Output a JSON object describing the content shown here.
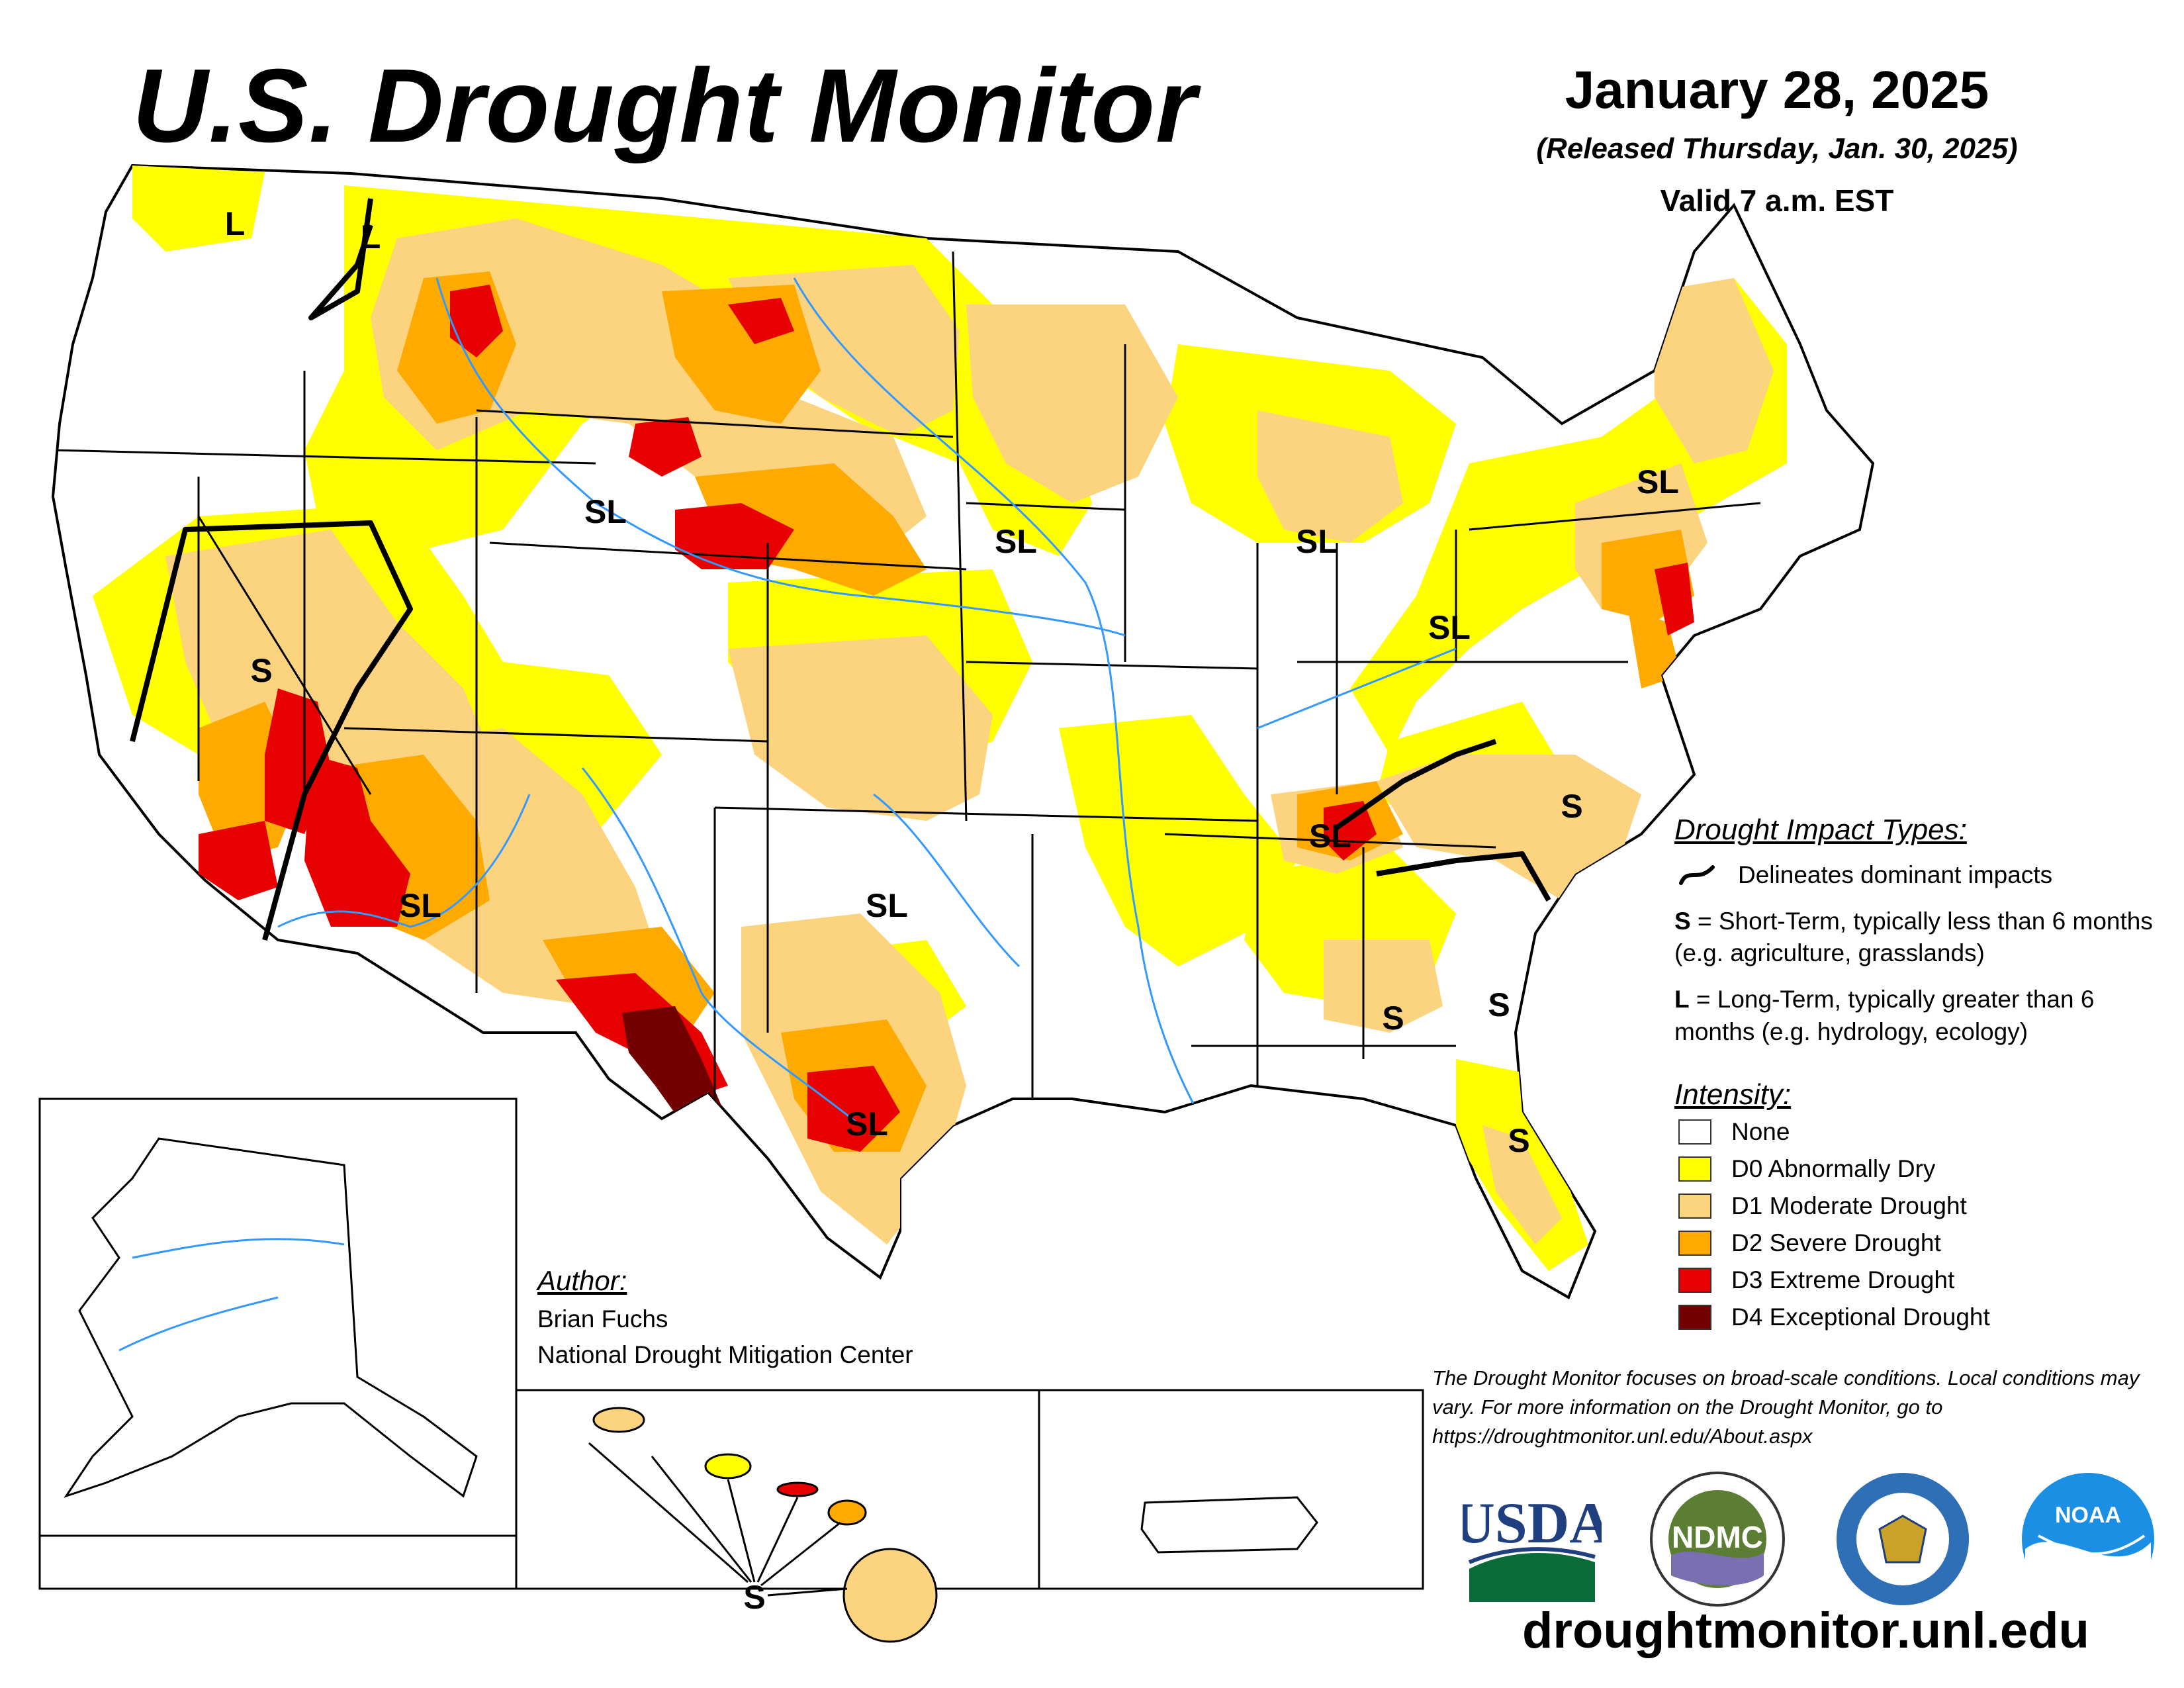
{
  "header": {
    "title": "U.S. Drought Monitor",
    "date": "January 28, 2025",
    "released": "(Released Thursday, Jan. 30, 2025)",
    "valid": "Valid 7 a.m. EST"
  },
  "legend": {
    "impact_heading": "Drought Impact Types:",
    "delineates": "Delineates dominant impacts",
    "short_key": "S",
    "short_desc": " = Short-Term, typically less than 6 months (e.g. agriculture, grasslands)",
    "long_key": "L",
    "long_desc": " = Long-Term, typically greater than 6 months (e.g. hydrology, ecology)",
    "intensity_heading": "Intensity:",
    "levels": [
      {
        "label": "None",
        "color": "#ffffff"
      },
      {
        "label": "D0 Abnormally Dry",
        "color": "#ffff00"
      },
      {
        "label": "D1 Moderate Drought",
        "color": "#fcd37f"
      },
      {
        "label": "D2 Severe Drought",
        "color": "#ffaa00"
      },
      {
        "label": "D3 Extreme Drought",
        "color": "#e60000"
      },
      {
        "label": "D4 Exceptional Drought",
        "color": "#730000"
      }
    ]
  },
  "author": {
    "heading": "Author:",
    "name": "Brian Fuchs",
    "org": "National Drought Mitigation Center"
  },
  "map_labels": {
    "wa_l": "L",
    "id_l": "L",
    "wy_sl": "SL",
    "ia_sl": "SL",
    "mi_sl": "SL",
    "ny_sl": "SL",
    "wv_sl": "SL",
    "nv_s": "S",
    "az_sl": "SL",
    "ok_sl": "SL",
    "tx_sl": "SL",
    "tn_sl": "SL",
    "nc_s": "S",
    "al_s": "S",
    "ga_s": "S",
    "fl_s": "S",
    "hi_s": "S"
  },
  "disclaimer": "The Drought Monitor focuses on broad-scale conditions. Local conditions may vary. For more information on the Drought Monitor, go to https://droughtmonitor.unl.edu/About.aspx",
  "logos": {
    "usda": "USDA",
    "ndmc": "NDMC",
    "noaa": "NOAA"
  },
  "website": "droughtmonitor.unl.edu"
}
